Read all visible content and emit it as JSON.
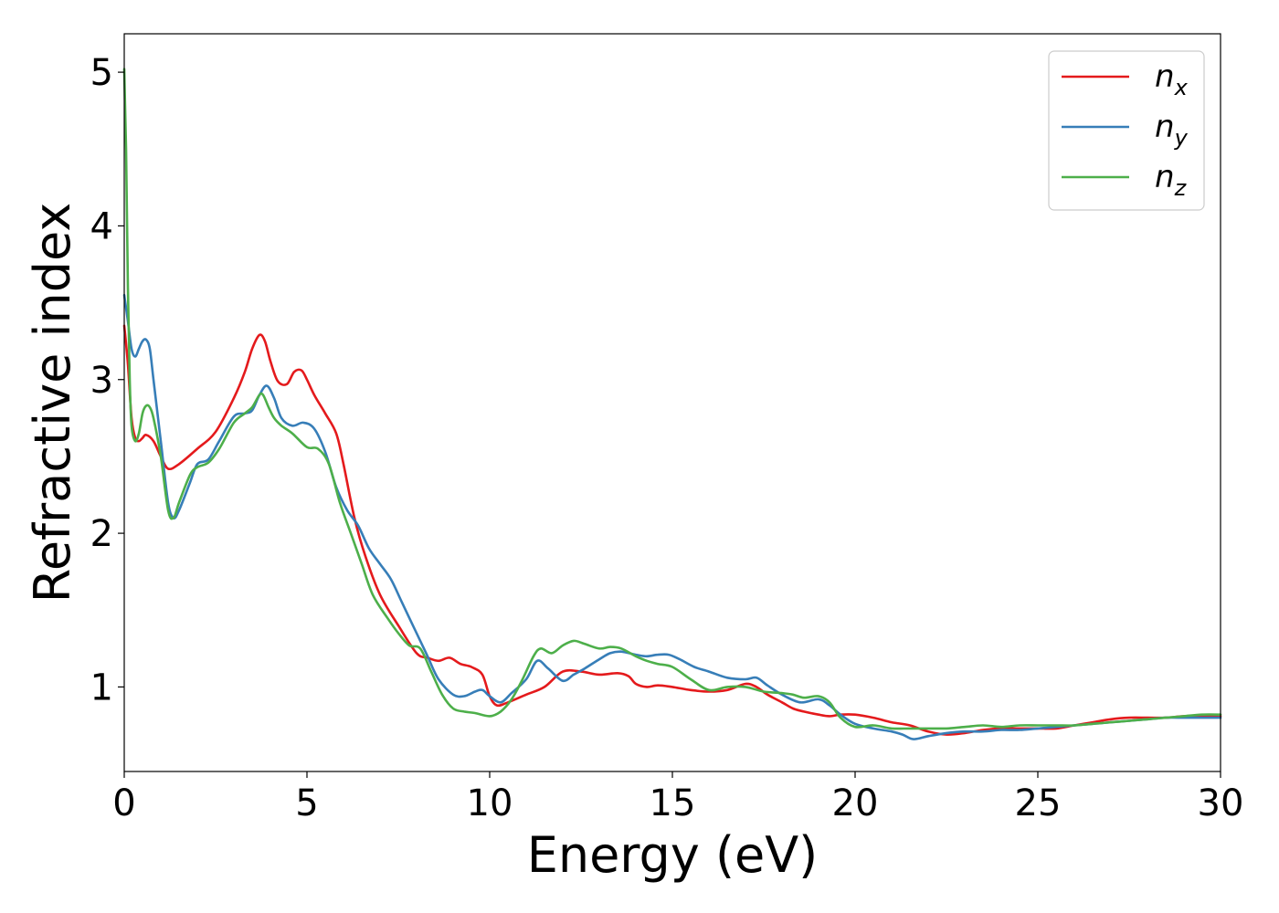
{
  "chart_data": {
    "type": "line",
    "title": "",
    "xlabel": "Energy (eV)",
    "ylabel": "Refractive index",
    "xlim": [
      0,
      30
    ],
    "ylim": [
      0.45,
      5.25
    ],
    "xticks": [
      0,
      5,
      10,
      15,
      20,
      25,
      30
    ],
    "yticks": [
      1,
      2,
      3,
      4,
      5
    ],
    "grid": false,
    "legend_position": "top-right",
    "series": [
      {
        "name": "n_x",
        "label_base": "n",
        "label_sub": "x",
        "color": "#e41a1c",
        "x": [
          0,
          0.1,
          0.2,
          0.3,
          0.4,
          0.5,
          0.6,
          0.8,
          1.0,
          1.2,
          1.5,
          2.0,
          2.5,
          3.0,
          3.3,
          3.5,
          3.7,
          3.85,
          4.0,
          4.2,
          4.45,
          4.65,
          4.85,
          5.0,
          5.2,
          5.5,
          5.8,
          6.0,
          6.3,
          6.6,
          7.0,
          7.5,
          8.0,
          8.3,
          8.6,
          8.9,
          9.2,
          9.5,
          9.8,
          10.0,
          10.2,
          10.5,
          11.0,
          11.5,
          12.0,
          12.5,
          13.0,
          13.5,
          13.8,
          14.0,
          14.3,
          14.6,
          15.0,
          15.5,
          16.0,
          16.5,
          17.0,
          17.3,
          17.6,
          18.0,
          18.3,
          18.6,
          19.0,
          19.3,
          19.6,
          20.0,
          20.5,
          21.0,
          21.5,
          22.0,
          22.5,
          23.0,
          23.5,
          24.0,
          24.5,
          25.0,
          25.5,
          26.0,
          26.5,
          27.0,
          27.5,
          28.0,
          28.5,
          29.0,
          29.5,
          30.0
        ],
        "y": [
          3.35,
          3.1,
          2.75,
          2.62,
          2.6,
          2.62,
          2.64,
          2.6,
          2.5,
          2.42,
          2.45,
          2.55,
          2.66,
          2.88,
          3.05,
          3.2,
          3.29,
          3.25,
          3.12,
          2.99,
          2.97,
          3.05,
          3.06,
          3.0,
          2.9,
          2.78,
          2.65,
          2.45,
          2.1,
          1.85,
          1.6,
          1.4,
          1.22,
          1.19,
          1.17,
          1.19,
          1.15,
          1.13,
          1.08,
          0.94,
          0.88,
          0.9,
          0.95,
          1.0,
          1.1,
          1.1,
          1.08,
          1.09,
          1.07,
          1.02,
          1.0,
          1.01,
          1.0,
          0.98,
          0.97,
          0.98,
          1.02,
          1.0,
          0.95,
          0.9,
          0.86,
          0.84,
          0.82,
          0.81,
          0.82,
          0.82,
          0.8,
          0.77,
          0.75,
          0.71,
          0.69,
          0.7,
          0.72,
          0.73,
          0.73,
          0.73,
          0.73,
          0.75,
          0.77,
          0.79,
          0.8,
          0.8,
          0.8,
          0.81,
          0.81,
          0.81
        ]
      },
      {
        "name": "n_y",
        "label_base": "n",
        "label_sub": "y",
        "color": "#377eb8",
        "x": [
          0,
          0.1,
          0.2,
          0.3,
          0.4,
          0.5,
          0.6,
          0.7,
          0.8,
          1.0,
          1.2,
          1.35,
          1.5,
          1.8,
          2.0,
          2.3,
          2.6,
          3.0,
          3.3,
          3.5,
          3.7,
          3.9,
          4.1,
          4.3,
          4.6,
          4.9,
          5.2,
          5.5,
          5.8,
          6.1,
          6.4,
          6.7,
          7.0,
          7.3,
          7.6,
          8.0,
          8.3,
          8.6,
          9.0,
          9.3,
          9.6,
          9.8,
          10.0,
          10.3,
          10.6,
          11.0,
          11.3,
          11.6,
          12.0,
          12.3,
          12.6,
          13.0,
          13.3,
          13.6,
          14.0,
          14.3,
          14.6,
          14.9,
          15.2,
          15.6,
          16.0,
          16.5,
          17.0,
          17.3,
          17.6,
          18.0,
          18.5,
          19.0,
          19.3,
          19.6,
          20.0,
          20.5,
          21.0,
          21.3,
          21.6,
          22.0,
          22.5,
          23.0,
          23.5,
          24.0,
          24.5,
          25.0,
          25.5,
          26.0,
          26.5,
          27.0,
          27.5,
          28.0,
          28.5,
          29.0,
          29.5,
          30.0
        ],
        "y": [
          3.55,
          3.38,
          3.2,
          3.15,
          3.2,
          3.25,
          3.26,
          3.2,
          3.0,
          2.6,
          2.2,
          2.1,
          2.15,
          2.33,
          2.45,
          2.48,
          2.6,
          2.76,
          2.78,
          2.8,
          2.9,
          2.96,
          2.88,
          2.75,
          2.7,
          2.72,
          2.68,
          2.53,
          2.3,
          2.15,
          2.05,
          1.9,
          1.8,
          1.7,
          1.55,
          1.35,
          1.2,
          1.05,
          0.95,
          0.94,
          0.97,
          0.98,
          0.94,
          0.9,
          0.96,
          1.05,
          1.17,
          1.12,
          1.04,
          1.08,
          1.12,
          1.18,
          1.22,
          1.23,
          1.21,
          1.2,
          1.21,
          1.21,
          1.18,
          1.13,
          1.1,
          1.06,
          1.05,
          1.06,
          1.01,
          0.95,
          0.9,
          0.92,
          0.88,
          0.82,
          0.76,
          0.73,
          0.71,
          0.69,
          0.66,
          0.68,
          0.7,
          0.71,
          0.71,
          0.72,
          0.72,
          0.73,
          0.74,
          0.75,
          0.76,
          0.77,
          0.78,
          0.79,
          0.8,
          0.8,
          0.8,
          0.8
        ]
      },
      {
        "name": "n_z",
        "label_base": "n",
        "label_sub": "z",
        "color": "#4daf4a",
        "x": [
          0,
          0.05,
          0.1,
          0.15,
          0.2,
          0.3,
          0.4,
          0.5,
          0.6,
          0.7,
          0.8,
          1.0,
          1.2,
          1.35,
          1.5,
          1.8,
          2.0,
          2.3,
          2.6,
          3.0,
          3.3,
          3.5,
          3.7,
          3.8,
          3.95,
          4.1,
          4.3,
          4.6,
          5.0,
          5.3,
          5.6,
          5.9,
          6.2,
          6.5,
          6.8,
          7.2,
          7.5,
          7.8,
          8.1,
          8.4,
          8.7,
          9.0,
          9.3,
          9.6,
          10.0,
          10.3,
          10.6,
          10.9,
          11.2,
          11.4,
          11.7,
          12.0,
          12.3,
          12.6,
          13.0,
          13.3,
          13.6,
          14.0,
          14.3,
          14.6,
          15.0,
          15.5,
          16.0,
          16.5,
          17.0,
          17.5,
          18.0,
          18.3,
          18.6,
          19.0,
          19.3,
          19.6,
          20.0,
          20.5,
          21.0,
          21.5,
          22.0,
          22.5,
          23.0,
          23.5,
          24.0,
          24.5,
          25.0,
          25.5,
          26.0,
          26.5,
          27.0,
          27.5,
          28.0,
          28.5,
          29.0,
          29.5,
          30.0
        ],
        "y": [
          5.02,
          4.5,
          3.6,
          3.0,
          2.7,
          2.6,
          2.65,
          2.78,
          2.83,
          2.82,
          2.75,
          2.5,
          2.15,
          2.1,
          2.2,
          2.38,
          2.43,
          2.46,
          2.55,
          2.72,
          2.78,
          2.82,
          2.9,
          2.9,
          2.82,
          2.75,
          2.7,
          2.65,
          2.56,
          2.55,
          2.45,
          2.2,
          2.0,
          1.8,
          1.6,
          1.45,
          1.35,
          1.27,
          1.25,
          1.1,
          0.95,
          0.86,
          0.84,
          0.83,
          0.81,
          0.84,
          0.92,
          1.05,
          1.2,
          1.25,
          1.22,
          1.27,
          1.3,
          1.28,
          1.25,
          1.26,
          1.25,
          1.2,
          1.17,
          1.15,
          1.13,
          1.05,
          0.98,
          1.0,
          1.0,
          0.97,
          0.96,
          0.95,
          0.93,
          0.94,
          0.9,
          0.8,
          0.74,
          0.75,
          0.73,
          0.73,
          0.73,
          0.73,
          0.74,
          0.75,
          0.74,
          0.75,
          0.75,
          0.75,
          0.75,
          0.76,
          0.77,
          0.78,
          0.79,
          0.8,
          0.81,
          0.82,
          0.82
        ]
      }
    ]
  }
}
